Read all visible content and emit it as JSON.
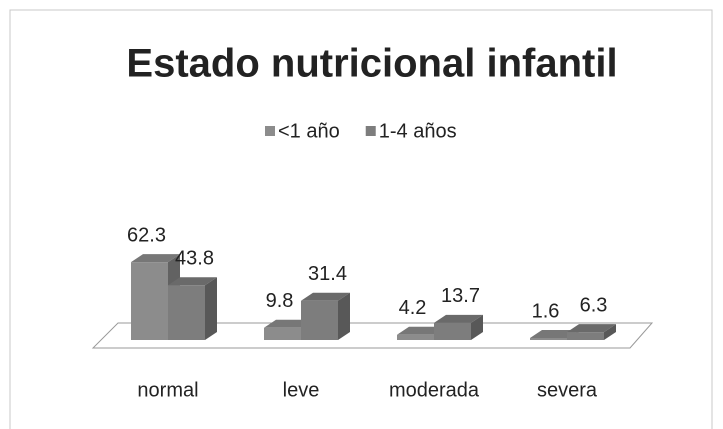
{
  "chart_data": {
    "type": "bar3d",
    "title": "Estado nutricional infantil",
    "categories": [
      "normal",
      "leve",
      "moderada",
      "severa"
    ],
    "series": [
      {
        "name": "<1 año",
        "color": "#8c8c8c",
        "values": [
          62.3,
          9.8,
          4.2,
          1.6
        ]
      },
      {
        "name": "1-4 años",
        "color": "#7d7d7d",
        "values": [
          43.8,
          31.4,
          13.7,
          6.3
        ]
      }
    ],
    "legend": "top"
  }
}
